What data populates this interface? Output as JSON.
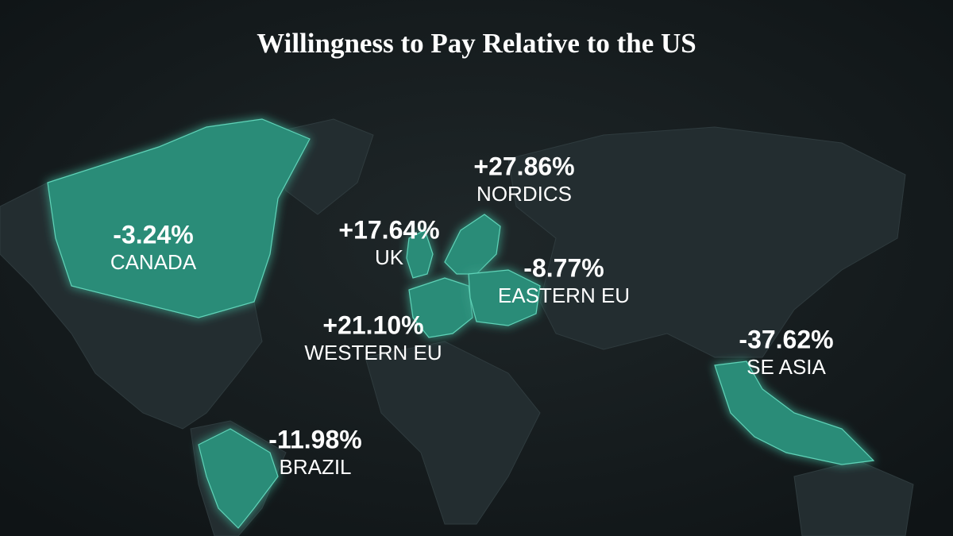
{
  "header": {
    "title": "Willingness to Pay Relative to the US"
  },
  "regions": [
    {
      "value": "+27.86%",
      "name": "NORDICS"
    },
    {
      "value": "+17.64%",
      "name": "UK"
    },
    {
      "value": "-3.24%",
      "name": "CANADA"
    },
    {
      "value": "-8.77%",
      "name": "EASTERN EU"
    },
    {
      "value": "+21.10%",
      "name": "WESTERN EU"
    },
    {
      "value": "-37.62%",
      "name": "SE ASIA"
    },
    {
      "value": "-11.98%",
      "name": "BRAZIL"
    }
  ]
}
